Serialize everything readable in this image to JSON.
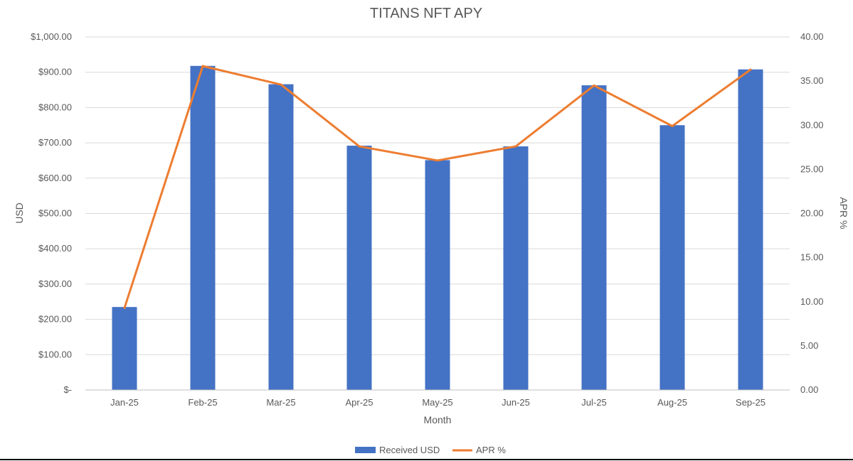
{
  "chart_data": {
    "type": "bar+line",
    "title": "TITANS NFT APY",
    "xlabel": "Month",
    "ylabel": "USD",
    "y2label": "APR %",
    "categories": [
      "Jan-25",
      "Feb-25",
      "Mar-25",
      "Apr-25",
      "May-25",
      "Jun-25",
      "Jul-25",
      "Aug-25",
      "Sep-25"
    ],
    "series": [
      {
        "name": "Received USD",
        "type": "bar",
        "axis": "left",
        "color": "#4472c4",
        "values": [
          235,
          918,
          866,
          692,
          651,
          690,
          863,
          750,
          908
        ]
      },
      {
        "name": "APR %",
        "type": "line",
        "axis": "right",
        "color": "#ed7d31",
        "values": [
          9.3,
          36.7,
          34.6,
          27.6,
          26.0,
          27.6,
          34.5,
          29.9,
          36.3
        ]
      }
    ],
    "ylim": [
      0,
      1000
    ],
    "y2lim": [
      0,
      40
    ],
    "yticks": [
      {
        "value": 0,
        "label": "$-"
      },
      {
        "value": 100,
        "label": "$100.00"
      },
      {
        "value": 200,
        "label": "$200.00"
      },
      {
        "value": 300,
        "label": "$300.00"
      },
      {
        "value": 400,
        "label": "$400.00"
      },
      {
        "value": 500,
        "label": "$500.00"
      },
      {
        "value": 600,
        "label": "$600.00"
      },
      {
        "value": 700,
        "label": "$700.00"
      },
      {
        "value": 800,
        "label": "$800.00"
      },
      {
        "value": 900,
        "label": "$900.00"
      },
      {
        "value": 1000,
        "label": "$1,000.00"
      }
    ],
    "y2ticks": [
      {
        "value": 0,
        "label": "0.00"
      },
      {
        "value": 5,
        "label": "5.00"
      },
      {
        "value": 10,
        "label": "10.00"
      },
      {
        "value": 15,
        "label": "15.00"
      },
      {
        "value": 20,
        "label": "20.00"
      },
      {
        "value": 25,
        "label": "25.00"
      },
      {
        "value": 30,
        "label": "30.00"
      },
      {
        "value": 35,
        "label": "35.00"
      },
      {
        "value": 40,
        "label": "40.00"
      }
    ],
    "grid": true,
    "legend": "bottom"
  }
}
